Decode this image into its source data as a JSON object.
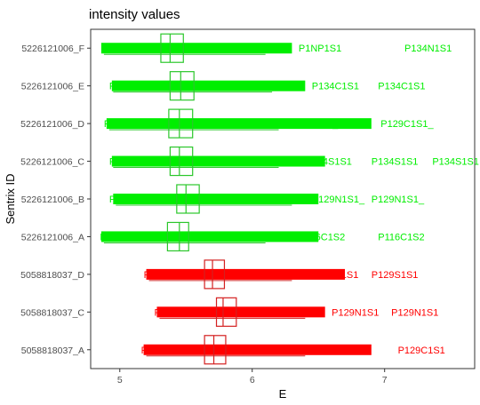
{
  "chart_data": {
    "type": "boxplot",
    "title": "intensity values",
    "xlabel": "E",
    "ylabel": "Sentrix ID",
    "xlim": [
      4.78,
      7.68
    ],
    "xticks": [
      5,
      6,
      7
    ],
    "grid": false,
    "legend": "none",
    "colors": {
      "green": "#00EE00",
      "red": "#FF0000",
      "box_green": "#2bc72b",
      "box_red": "#d42020"
    },
    "series": [
      {
        "sentrix_id": "5226121006_F",
        "color": "green",
        "q1": 5.31,
        "median": 5.38,
        "q3": 5.48,
        "whisker_low": 4.88,
        "whisker_high": 6.1,
        "outlier_min": 4.86,
        "outlier_max": 6.3,
        "outlier_labels": [
          {
            "text": "P1",
            "x": 4.88
          },
          {
            "text": "P1NP1S1",
            "x": 6.35
          },
          {
            "text": "P134N1S1",
            "x": 7.15
          }
        ]
      },
      {
        "sentrix_id": "5226121006_E",
        "color": "green",
        "q1": 5.38,
        "median": 5.46,
        "q3": 5.56,
        "whisker_low": 4.95,
        "whisker_high": 6.15,
        "outlier_min": 4.94,
        "outlier_max": 6.4,
        "outlier_labels": [
          {
            "text": "P1",
            "x": 4.92
          },
          {
            "text": "P134C1S1",
            "x": 6.45
          },
          {
            "text": "P134C1S1",
            "x": 6.95
          }
        ]
      },
      {
        "sentrix_id": "5226121006_D",
        "color": "green",
        "q1": 5.37,
        "median": 5.45,
        "q3": 5.55,
        "whisker_low": 4.92,
        "whisker_high": 6.2,
        "outlier_min": 4.9,
        "outlier_max": 6.9,
        "outlier_labels": [
          {
            "text": "P1",
            "x": 4.88
          },
          {
            "text": "P129C1S1_",
            "x": 6.25
          },
          {
            "text": "P129C1S1_",
            "x": 6.97
          }
        ]
      },
      {
        "sentrix_id": "5226121006_C",
        "color": "green",
        "q1": 5.38,
        "median": 5.45,
        "q3": 5.55,
        "whisker_low": 4.95,
        "whisker_high": 6.2,
        "outlier_min": 4.94,
        "outlier_max": 6.55,
        "outlier_labels": [
          {
            "text": "P1",
            "x": 4.92
          },
          {
            "text": "P134S1S1",
            "x": 6.4
          },
          {
            "text": "P134S1S1",
            "x": 6.9
          },
          {
            "text": "P134S1S1",
            "x": 7.36
          }
        ]
      },
      {
        "sentrix_id": "5226121006_B",
        "color": "green",
        "q1": 5.43,
        "median": 5.5,
        "q3": 5.6,
        "whisker_low": 4.97,
        "whisker_high": 6.3,
        "outlier_min": 4.95,
        "outlier_max": 6.5,
        "outlier_labels": [
          {
            "text": "P1",
            "x": 4.92
          },
          {
            "text": "P129N1S1_",
            "x": 6.45
          },
          {
            "text": "P129N1S1_",
            "x": 6.9
          }
        ]
      },
      {
        "sentrix_id": "5226121006_A",
        "color": "green",
        "q1": 5.36,
        "median": 5.45,
        "q3": 5.52,
        "whisker_low": 4.88,
        "whisker_high": 6.1,
        "outlier_min": 4.86,
        "outlier_max": 6.5,
        "outlier_labels": [
          {
            "text": "P1",
            "x": 4.85
          },
          {
            "text": "P116C1S2",
            "x": 6.35
          },
          {
            "text": "P116C1S2",
            "x": 6.95
          }
        ]
      },
      {
        "sentrix_id": "5058818037_D",
        "color": "red",
        "q1": 5.64,
        "median": 5.7,
        "q3": 5.79,
        "whisker_low": 5.22,
        "whisker_high": 6.3,
        "outlier_min": 5.2,
        "outlier_max": 6.7,
        "outlier_labels": [
          {
            "text": "P1",
            "x": 5.18
          },
          {
            "text": "P129S1S1",
            "x": 6.45
          },
          {
            "text": "P129S1S1",
            "x": 6.9
          }
        ]
      },
      {
        "sentrix_id": "5058818037_C",
        "color": "red",
        "q1": 5.73,
        "median": 5.78,
        "q3": 5.88,
        "whisker_low": 5.3,
        "whisker_high": 6.4,
        "outlier_min": 5.28,
        "outlier_max": 6.55,
        "outlier_labels": [
          {
            "text": "P1",
            "x": 5.26
          },
          {
            "text": "P129N1S1",
            "x": 6.6
          },
          {
            "text": "P129N1S1",
            "x": 7.05
          }
        ]
      },
      {
        "sentrix_id": "5058818037_A",
        "color": "red",
        "q1": 5.64,
        "median": 5.71,
        "q3": 5.8,
        "whisker_low": 5.2,
        "whisker_high": 6.4,
        "outlier_min": 5.18,
        "outlier_max": 6.9,
        "outlier_labels": [
          {
            "text": "P1",
            "x": 5.16
          },
          {
            "text": "P129C1S1",
            "x": 6.45
          },
          {
            "text": "P129C1S1",
            "x": 7.1
          }
        ]
      }
    ]
  }
}
